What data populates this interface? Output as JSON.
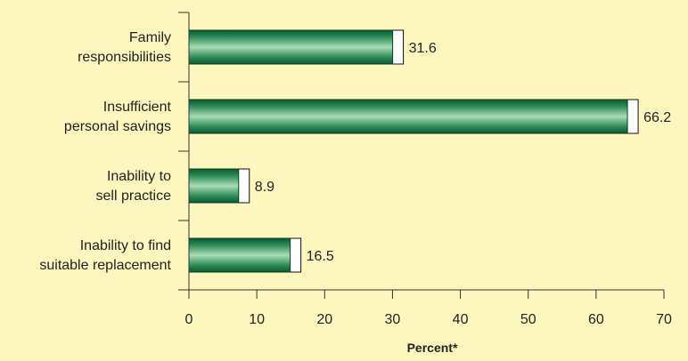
{
  "chart_data": {
    "type": "bar",
    "orientation": "horizontal",
    "categories": [
      [
        "Family",
        "responsibilities"
      ],
      [
        "Insufficient",
        "personal savings"
      ],
      [
        "Inability to",
        "sell practice"
      ],
      [
        "Inability to find",
        "suitable replacement"
      ]
    ],
    "values": [
      31.6,
      66.2,
      8.9,
      16.5
    ],
    "value_labels": [
      "31.6",
      "66.2",
      "8.9",
      "16.5"
    ],
    "xlabel": "Percent*",
    "xlim": [
      0,
      70
    ],
    "xticks": [
      "0",
      "10",
      "20",
      "30",
      "40",
      "50",
      "60",
      "70"
    ],
    "grid": false,
    "colors": {
      "background": "#fdf6bf",
      "bar_dark": "#0a5a32",
      "bar_mid": "#2e8b57",
      "bar_light": "#9fd6b0",
      "axis": "#333333"
    }
  }
}
